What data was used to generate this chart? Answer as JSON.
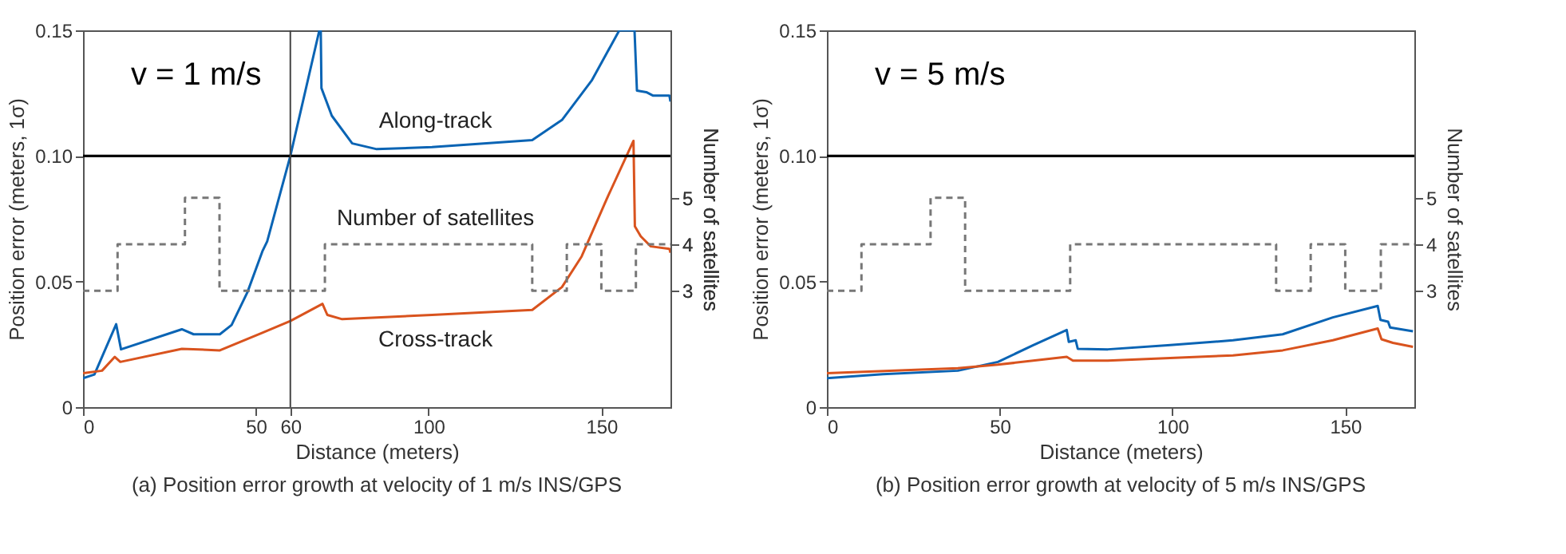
{
  "chart_data": [
    {
      "type": "line",
      "title": "(a) Position error growth at velocity of 1 m/s INS/GPS",
      "xlabel": "Distance (meters)",
      "ylabel": "Position error (meters, 1σ)",
      "y2label": "Number of satellites",
      "xlim": [
        0,
        170
      ],
      "xticks": [
        0,
        50,
        60,
        100,
        150
      ],
      "ylim": [
        0,
        0.15
      ],
      "yticks": [
        0,
        0.05,
        {
          "value": 0.1,
          "label": "0.10"
        },
        0.15
      ],
      "y2lim": [
        0.5,
        8.6
      ],
      "y2ticks": [
        3,
        4,
        5
      ],
      "series": [
        {
          "name": "Along-track",
          "color": "#0a64b4",
          "x": [
            0,
            3.3,
            9.6,
            11,
            28.6,
            32,
            39.6,
            43,
            47.6,
            51.9,
            53.3,
            60,
            68.4,
            68.8,
            69.0,
            72,
            77.9,
            85,
            101,
            130,
            138.6,
            147.2,
            155.2,
            159.6,
            160.3,
            163,
            165,
            169.7,
            170
          ],
          "values": [
            0.0115,
            0.013,
            0.033,
            0.023,
            0.031,
            0.029,
            0.029,
            0.0327,
            0.0458,
            0.062,
            0.066,
            0.1,
            0.15,
            0.15,
            0.127,
            0.116,
            0.105,
            0.1027,
            0.1035,
            0.1063,
            0.1143,
            0.13,
            0.15,
            0.15,
            0.126,
            0.1254,
            0.124,
            0.124,
            0.1216
          ]
        },
        {
          "name": "Cross-track",
          "color": "#d9531e",
          "x": [
            0,
            5.5,
            9.2,
            10.8,
            28.6,
            39.6,
            51.9,
            60,
            69.3,
            70.7,
            75,
            101,
            130,
            138.6,
            144.3,
            151.6,
            159.3,
            159.7,
            161.4,
            164.3,
            169.7,
            170
          ],
          "values": [
            0.0135,
            0.0145,
            0.02,
            0.018,
            0.0232,
            0.0226,
            0.0296,
            0.0343,
            0.0411,
            0.0367,
            0.035,
            0.0367,
            0.0387,
            0.0478,
            0.06,
            0.083,
            0.106,
            0.072,
            0.068,
            0.064,
            0.063,
            0.0615
          ]
        },
        {
          "name": "Number of satellites",
          "type": "step",
          "axis": "y2",
          "line_style": "dashed",
          "color": "#777777",
          "x": [
            0,
            10,
            29.5,
            39.5,
            70,
            130,
            140,
            150,
            160,
            170
          ],
          "values": [
            3,
            4,
            5,
            3,
            4,
            3,
            4,
            3,
            4,
            4
          ]
        }
      ],
      "ref_lines": [
        {
          "axis": "y",
          "value": 0.1,
          "color": "#000000"
        },
        {
          "axis": "x",
          "value": 60,
          "color": "#444444"
        }
      ],
      "annotations": [
        "v = 1 m/s"
      ]
    },
    {
      "type": "line",
      "title": "(b) Position error growth at velocity of 5 m/s INS/GPS",
      "xlabel": "Distance (meters)",
      "ylabel": "Position error (meters, 1σ)",
      "y2label": "Number of satellites",
      "xlim": [
        0,
        170
      ],
      "xticks": [
        0,
        50,
        100,
        150
      ],
      "ylim": [
        0,
        0.15
      ],
      "yticks": [
        0,
        0.05,
        {
          "value": 0.1,
          "label": "0.10"
        },
        0.15
      ],
      "y2lim": [
        0.5,
        8.6
      ],
      "y2ticks": [
        3,
        4,
        5
      ],
      "series": [
        {
          "color": "#0a64b4",
          "x": [
            0,
            16.2,
            37.9,
            49.5,
            59.6,
            69.4,
            70,
            72,
            72.6,
            81.3,
            98.6,
            117.5,
            131.9,
            146.4,
            159.4,
            160.2,
            162.4,
            163,
            169.6
          ],
          "values": [
            0.0115,
            0.0131,
            0.0145,
            0.018,
            0.0246,
            0.0307,
            0.026,
            0.0266,
            0.0232,
            0.023,
            0.0246,
            0.0266,
            0.029,
            0.0357,
            0.0403,
            0.0347,
            0.034,
            0.0317,
            0.0302
          ]
        },
        {
          "color": "#d9531e",
          "x": [
            0,
            37.9,
            49.5,
            69.4,
            71.2,
            81.3,
            117.5,
            131.9,
            146.4,
            159.4,
            160.5,
            163.8,
            169.6
          ],
          "values": [
            0.0135,
            0.0155,
            0.0169,
            0.02,
            0.0185,
            0.0185,
            0.0206,
            0.0226,
            0.0266,
            0.0313,
            0.027,
            0.0256,
            0.024
          ]
        },
        {
          "type": "step",
          "axis": "y2",
          "line_style": "dashed",
          "color": "#777777",
          "x": [
            0,
            10,
            30,
            40,
            70.4,
            130,
            140,
            150,
            160.3,
            170
          ],
          "values": [
            3,
            4,
            5,
            3,
            4,
            3,
            4,
            3,
            4,
            4
          ]
        }
      ],
      "ref_lines": [
        {
          "axis": "y",
          "value": 0.1,
          "color": "#000000"
        }
      ],
      "annotations": [
        "v = 5 m/s"
      ]
    }
  ]
}
